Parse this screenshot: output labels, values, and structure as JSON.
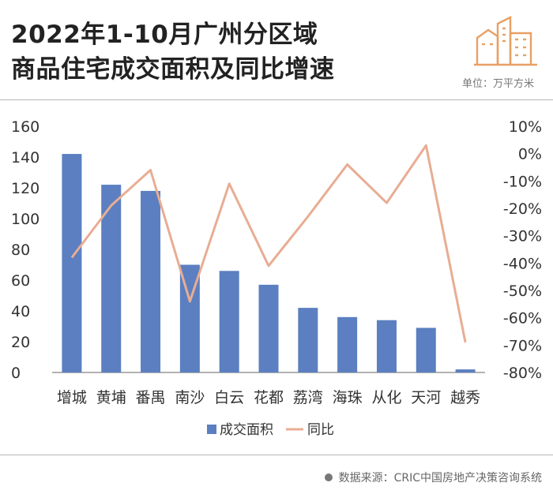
{
  "title_line1": "2022年1-10月广州分区域",
  "title_line2": "商品住宅成交面积及同比增速",
  "unit": "单位：万平方米",
  "source": "数据来源：CRIC中国房地产决策咨询系统",
  "colors": {
    "bar": "#5b7fc0",
    "line": "#e8ad93",
    "logo": "#e8a064"
  },
  "chart_data": {
    "type": "bar",
    "categories": [
      "增城",
      "黄埔",
      "番禺",
      "南沙",
      "白云",
      "花都",
      "荔湾",
      "海珠",
      "从化",
      "天河",
      "越秀"
    ],
    "series": [
      {
        "name": "成交面积",
        "type": "bar",
        "axis": "left",
        "values": [
          142,
          122,
          118,
          70,
          66,
          57,
          42,
          36,
          34,
          29,
          2
        ]
      },
      {
        "name": "同比",
        "type": "line",
        "axis": "right",
        "values": [
          -38,
          -19,
          -6,
          -54,
          -11,
          -41,
          -23,
          -4,
          -18,
          3,
          -69
        ]
      }
    ],
    "y_left": {
      "min": 0,
      "max": 160,
      "ticks": [
        "0",
        "20",
        "40",
        "60",
        "80",
        "100",
        "120",
        "140",
        "160"
      ]
    },
    "y_right": {
      "min": -80,
      "max": 10,
      "ticks": [
        "-80%",
        "-70%",
        "-60%",
        "-50%",
        "-40%",
        "-30%",
        "-20%",
        "-10%",
        "0%",
        "10%"
      ]
    },
    "legend_position": "bottom",
    "grid": false
  }
}
